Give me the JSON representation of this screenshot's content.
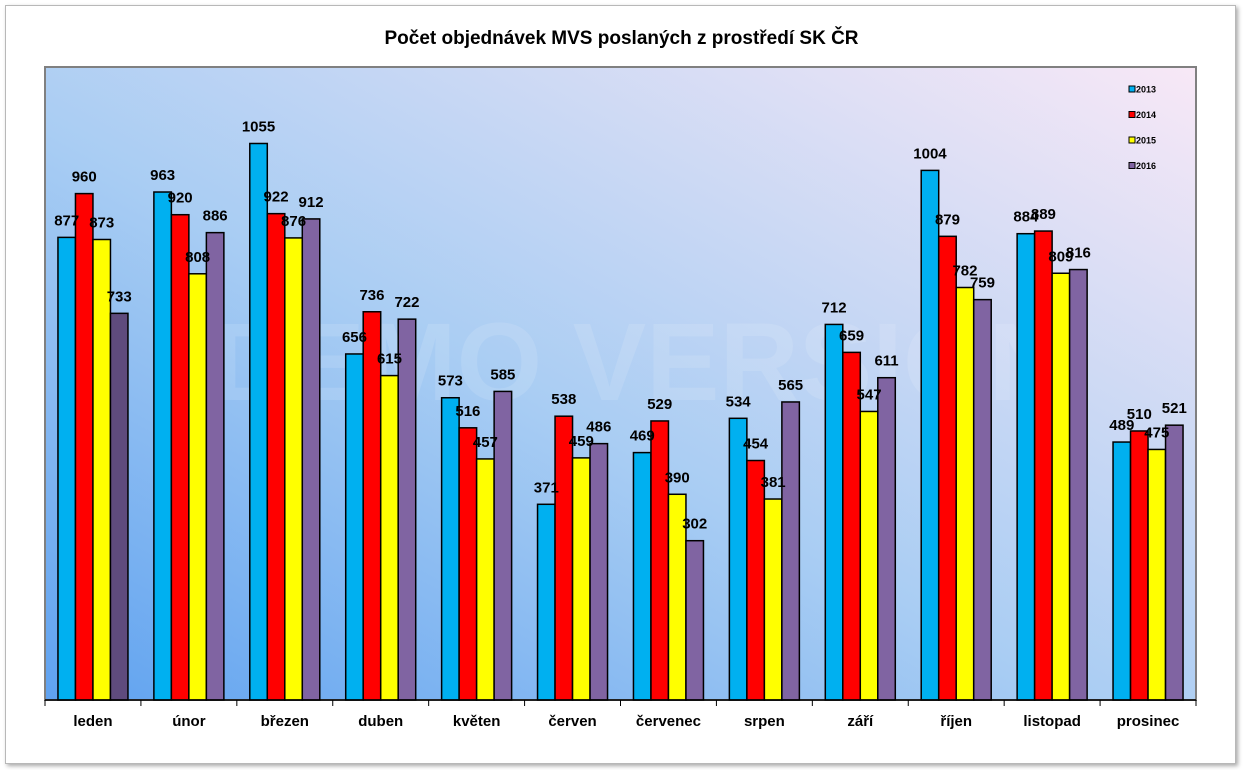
{
  "chart_data": {
    "type": "bar",
    "title": "Počet objednávek MVS poslaných z prostředí SK ČR",
    "xlabel": "",
    "ylabel": "",
    "ylim": [
      0,
      1200
    ],
    "grid": false,
    "legend_position": "top-right",
    "watermark": "DEMO VERSION",
    "categories": [
      "leden",
      "únor",
      "březen",
      "duben",
      "květen",
      "červen",
      "červenec",
      "srpen",
      "září",
      "říjen",
      "listopad",
      "prosinec"
    ],
    "series": [
      {
        "name": "2013",
        "color": "#00b0f0",
        "values": [
          877,
          963,
          1055,
          656,
          573,
          371,
          469,
          534,
          712,
          1004,
          884,
          489
        ]
      },
      {
        "name": "2014",
        "color": "#ff0000",
        "values": [
          960,
          920,
          922,
          736,
          516,
          538,
          529,
          454,
          659,
          879,
          889,
          510
        ]
      },
      {
        "name": "2015",
        "color": "#ffff00",
        "values": [
          873,
          808,
          876,
          615,
          457,
          459,
          390,
          381,
          547,
          782,
          809,
          475
        ]
      },
      {
        "name": "2016",
        "color": "#8064a2",
        "values": [
          733,
          886,
          912,
          722,
          585,
          486,
          302,
          565,
          611,
          759,
          816,
          521
        ]
      }
    ]
  }
}
